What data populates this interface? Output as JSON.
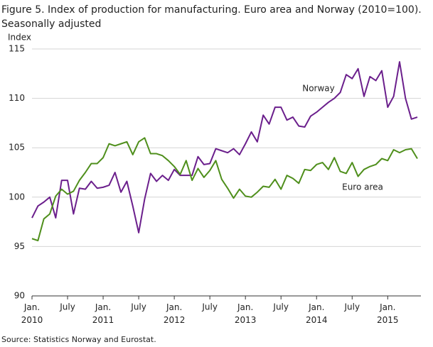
{
  "chart_data": {
    "type": "line",
    "title": "Figure 5. Index of production for manufacturing. Euro area and Norway (2010=100).",
    "subtitle": "Seasonally adjusted",
    "y_label": "Index",
    "source": "Source: Statistics Norway and Eurostat.",
    "categories": [
      "Jan.\n2010",
      null,
      null,
      null,
      null,
      null,
      "July",
      null,
      null,
      null,
      null,
      null,
      "Jan.\n2011",
      null,
      null,
      null,
      null,
      null,
      "July",
      null,
      null,
      null,
      null,
      null,
      "Jan.\n2012",
      null,
      null,
      null,
      null,
      null,
      "July",
      null,
      null,
      null,
      null,
      null,
      "Jan.\n2013",
      null,
      null,
      null,
      null,
      null,
      "July",
      null,
      null,
      null,
      null,
      null,
      "Jan.\n2014",
      null,
      null,
      null,
      null,
      null,
      "July",
      null,
      null,
      null,
      null,
      null,
      "Jan.\n2015",
      null,
      null,
      null,
      null,
      null
    ],
    "ylim": [
      90,
      115
    ],
    "yticks": [
      90,
      95,
      100,
      105,
      110,
      115
    ],
    "grid": true,
    "series": [
      {
        "name": "Norway",
        "color": "#6b1f8c",
        "values": [
          97.9,
          99.1,
          99.5,
          100,
          97.9,
          101.7,
          101.7,
          98.3,
          100.9,
          100.8,
          101.6,
          100.9,
          101,
          101.2,
          102.5,
          100.5,
          101.6,
          99.1,
          96.4,
          99.8,
          102.4,
          101.6,
          102.2,
          101.7,
          102.8,
          102.2,
          102.2,
          102.2,
          104.1,
          103.3,
          103.4,
          104.9,
          104.7,
          104.5,
          104.9,
          104.3,
          105.4,
          106.6,
          105.6,
          108.3,
          107.4,
          109.1,
          109.1,
          107.8,
          108.1,
          107.2,
          107.1,
          108.2,
          108.6,
          109.1,
          109.6,
          110,
          110.6,
          112.4,
          112,
          113,
          110.2,
          112.2,
          111.8,
          112.8,
          109.1,
          110.2,
          113.7,
          110,
          107.9,
          108.1
        ]
      },
      {
        "name": "Euro area",
        "color": "#4f8f1c",
        "values": [
          95.8,
          95.6,
          97.8,
          98.3,
          100.1,
          100.8,
          100.3,
          100.6,
          101.7,
          102.5,
          103.4,
          103.4,
          104,
          105.4,
          105.2,
          105.4,
          105.6,
          104.3,
          105.6,
          106,
          104.4,
          104.4,
          104.2,
          103.7,
          103.1,
          102.3,
          103.7,
          101.7,
          102.9,
          102,
          102.7,
          103.7,
          101.8,
          100.9,
          99.9,
          100.8,
          100.1,
          100,
          100.5,
          101.1,
          101,
          101.8,
          100.8,
          102.2,
          101.9,
          101.4,
          102.8,
          102.7,
          103.3,
          103.5,
          102.8,
          104,
          102.6,
          102.4,
          103.5,
          102.1,
          102.8,
          103.1,
          103.3,
          103.9,
          103.7,
          104.8,
          104.5,
          104.8,
          104.9,
          103.9
        ]
      }
    ]
  }
}
